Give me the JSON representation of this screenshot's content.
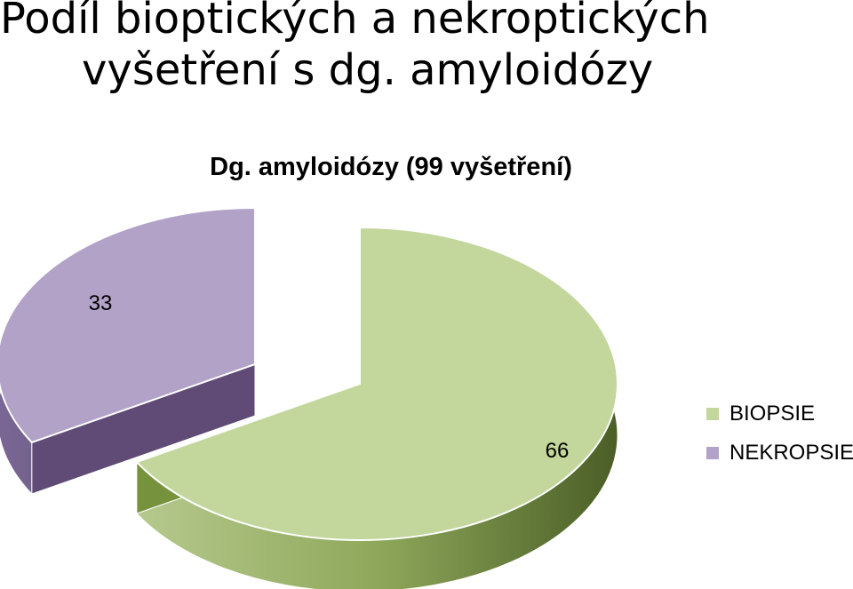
{
  "slide": {
    "title_line1": "Podíl bioptických a nekroptických",
    "title_line2": "vyšetření s dg. amyloidózy"
  },
  "chart_data": {
    "type": "pie",
    "title": "Dg. amyloidózy (99 vyšetření)",
    "style": "3d-exploded",
    "series": [
      {
        "name": "BIOPSIE",
        "value": 66,
        "label": "66",
        "color": "#c3d69b",
        "side_color": "#76923c"
      },
      {
        "name": "NEKROPSIE",
        "value": 33,
        "label": "33",
        "color": "#b2a2c7",
        "side_color": "#5f4b75"
      }
    ],
    "legend_position": "right"
  }
}
